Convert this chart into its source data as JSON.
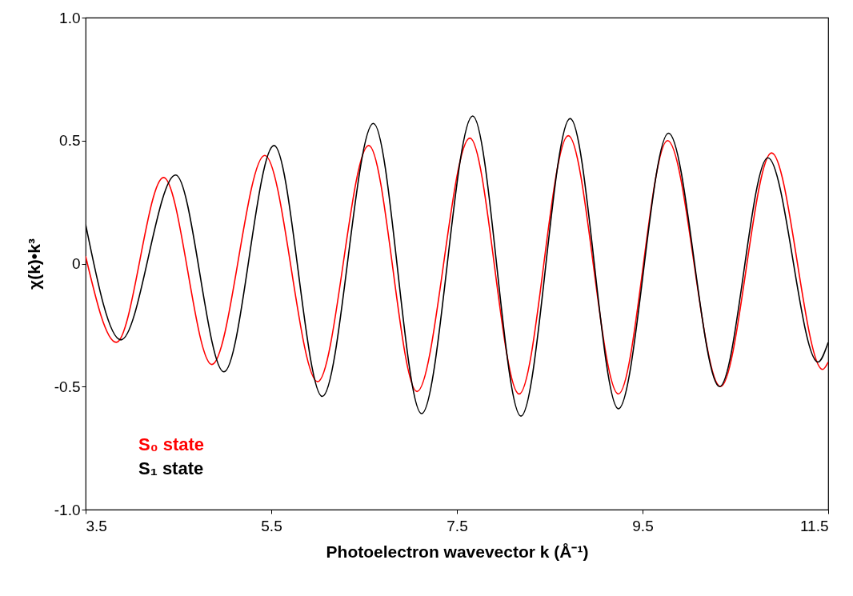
{
  "chart_data": {
    "type": "line",
    "xlabel": "Photoelectron wavevector k (Å⁻¹)",
    "ylabel": "χ(k)•k³",
    "xlim": [
      3.5,
      11.5
    ],
    "xticks": [
      3.5,
      5.5,
      7.5,
      9.5,
      11.5
    ],
    "ylim": [
      -1,
      1
    ],
    "yticks": [
      {
        "value": -1,
        "label": "-1.0"
      },
      -0.5,
      0,
      0.5,
      {
        "value": 1,
        "label": "1.0"
      }
    ],
    "grid": false,
    "legend": "bottom left",
    "marker": "none",
    "line_style": "solid",
    "series": [
      {
        "name": "S₀ state",
        "color": "#ff0000",
        "x": [
          3.5,
          3.83,
          4.34,
          4.86,
          5.43,
          6.0,
          6.55,
          7.07,
          7.64,
          8.17,
          8.7,
          9.24,
          9.77,
          10.34,
          10.89,
          11.44,
          11.5
        ],
        "values": [
          0.03,
          -0.32,
          0.35,
          -0.41,
          0.44,
          -0.48,
          0.48,
          -0.52,
          0.51,
          -0.53,
          0.52,
          -0.53,
          0.5,
          -0.5,
          0.45,
          -0.43,
          -0.4
        ]
      },
      {
        "name": "S₁ state",
        "color": "#000000",
        "x": [
          3.5,
          3.88,
          4.47,
          4.99,
          5.53,
          6.05,
          6.6,
          7.12,
          7.67,
          8.19,
          8.72,
          9.24,
          9.78,
          10.33,
          10.85,
          11.39,
          11.5
        ],
        "values": [
          0.16,
          -0.31,
          0.36,
          -0.44,
          0.48,
          -0.54,
          0.57,
          -0.61,
          0.6,
          -0.62,
          0.59,
          -0.59,
          0.53,
          -0.5,
          0.43,
          -0.4,
          -0.32
        ]
      }
    ]
  }
}
